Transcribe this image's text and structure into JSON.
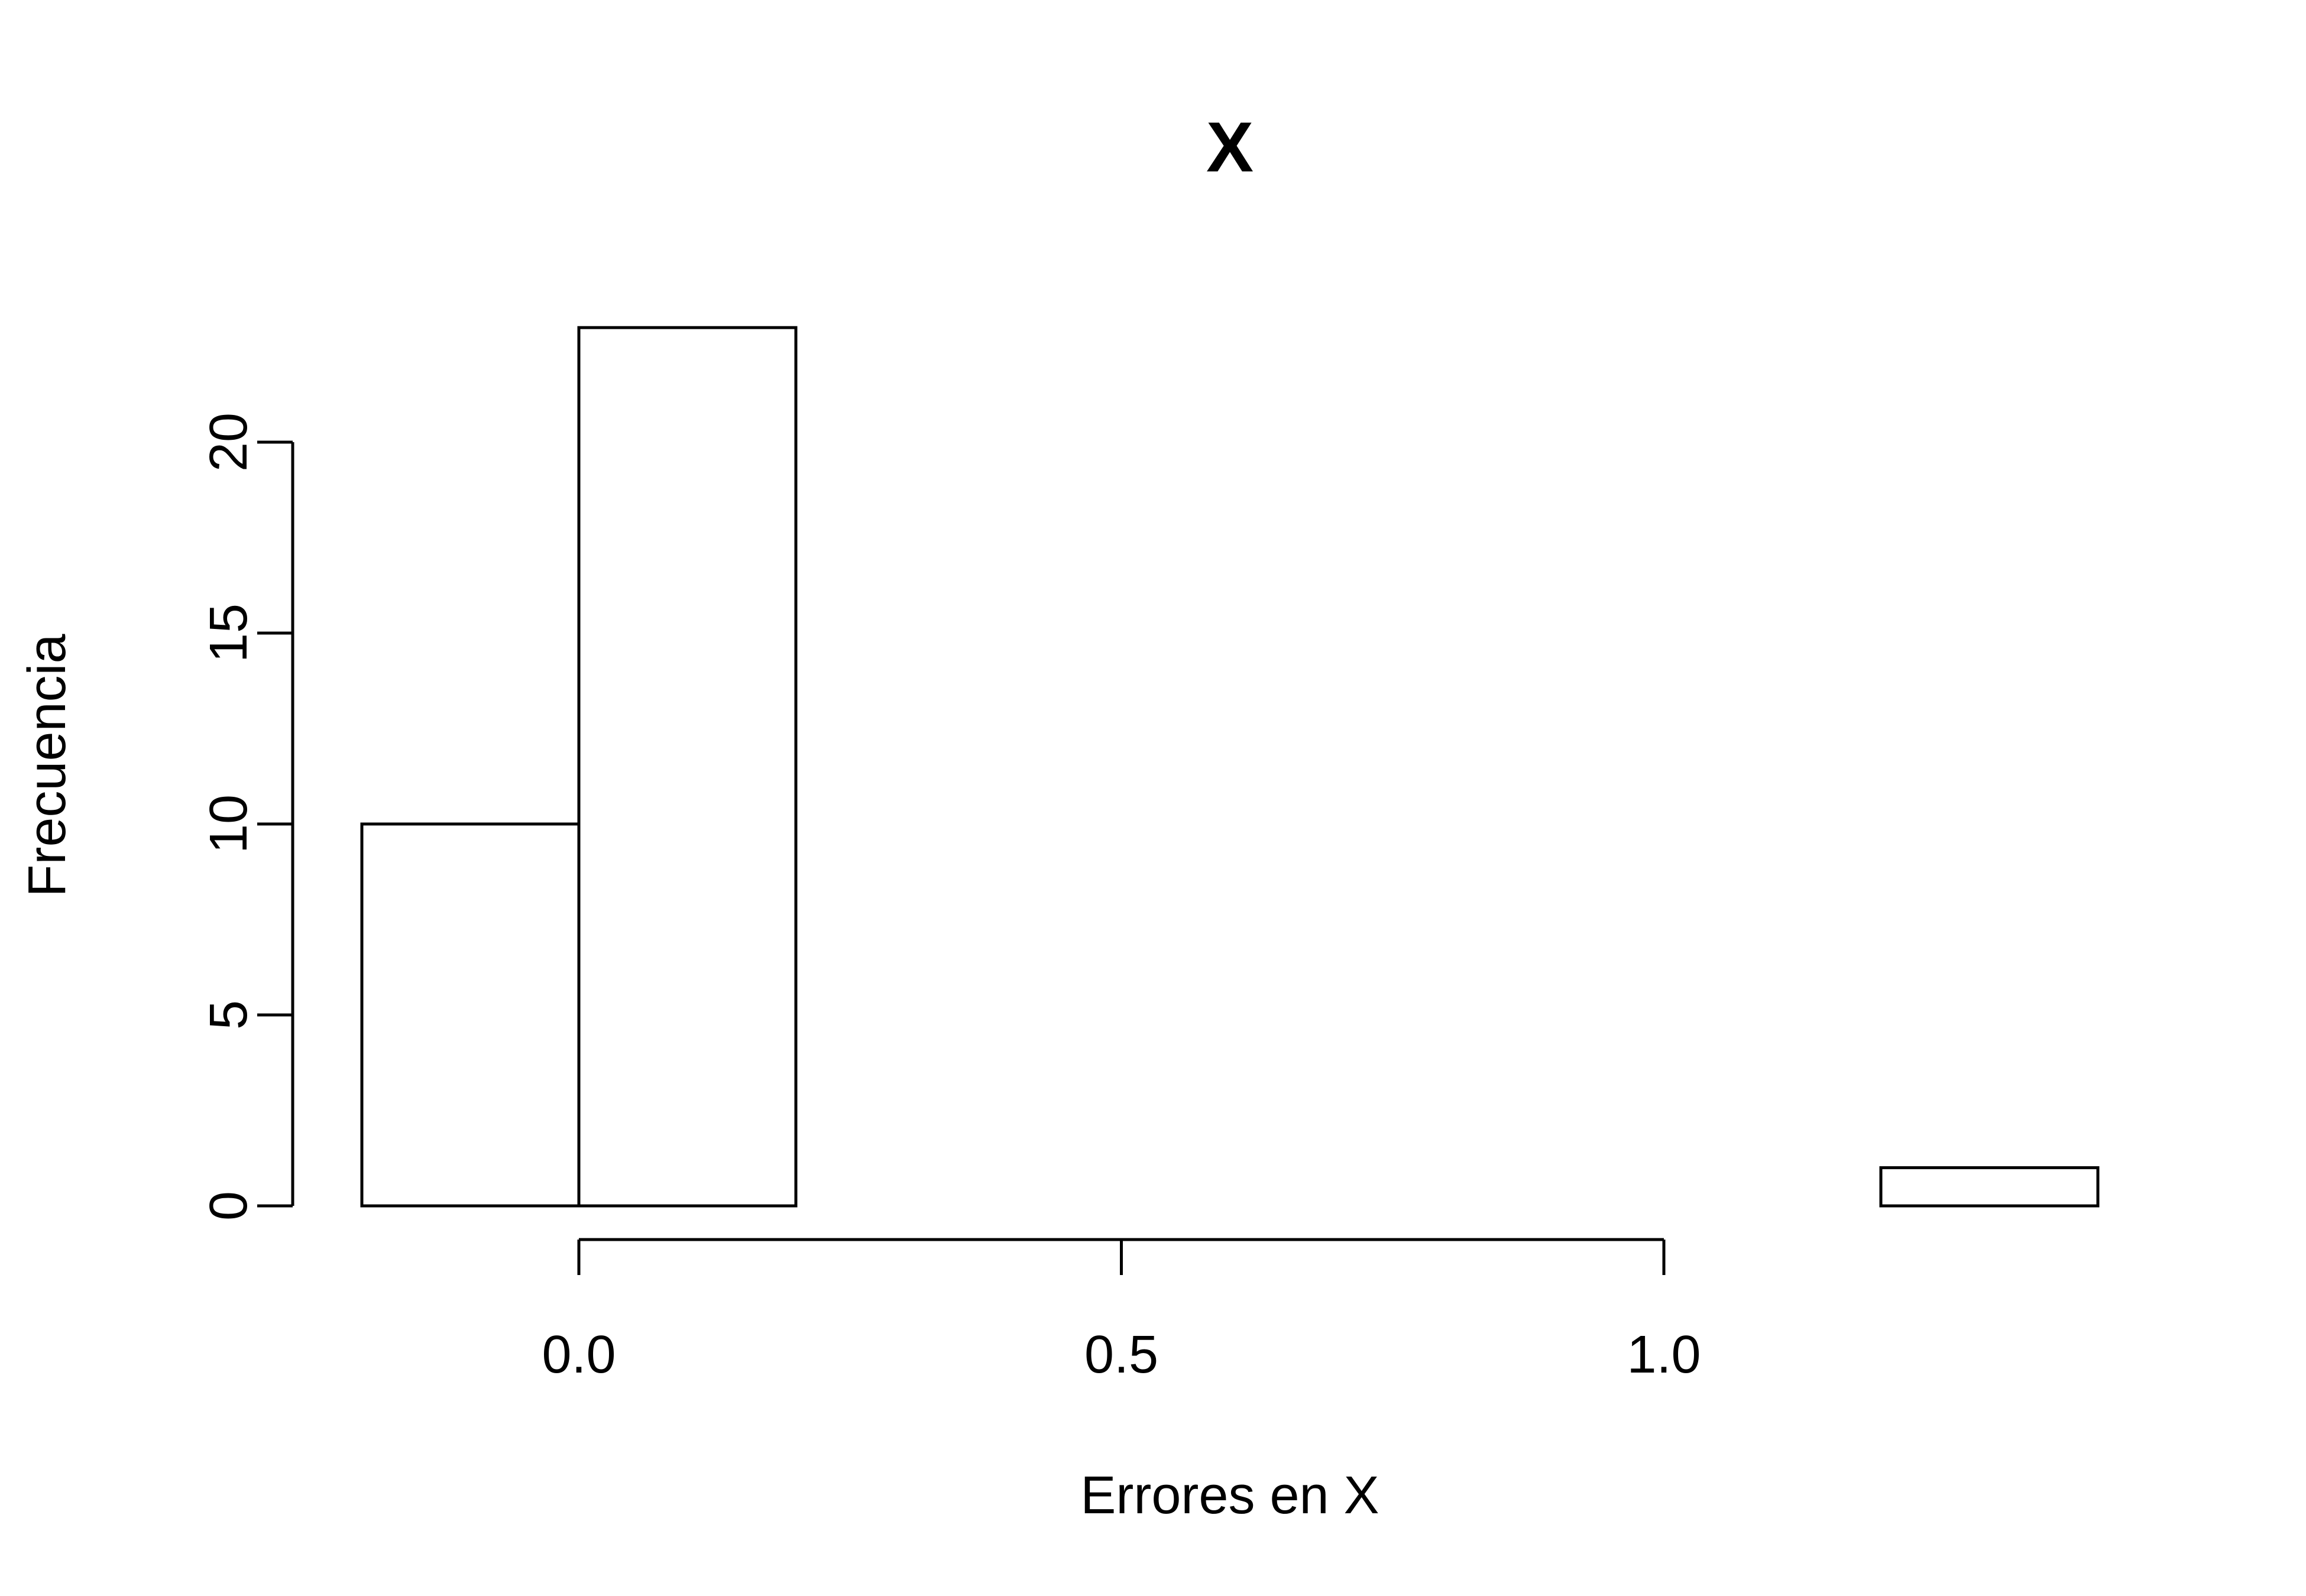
{
  "chart_data": {
    "type": "bar",
    "subtype": "histogram",
    "title": "X",
    "xlabel": "Errores en X",
    "ylabel": "Frecuencia",
    "bins": [
      {
        "start": -0.2,
        "end": 0.0,
        "count": 10
      },
      {
        "start": 0.0,
        "end": 0.2,
        "count": 23
      },
      {
        "start": 0.2,
        "end": 0.4,
        "count": 0
      },
      {
        "start": 0.4,
        "end": 0.6,
        "count": 0
      },
      {
        "start": 0.6,
        "end": 0.8,
        "count": 0
      },
      {
        "start": 0.8,
        "end": 1.0,
        "count": 0
      },
      {
        "start": 1.0,
        "end": 1.2,
        "count": 0
      },
      {
        "start": 1.2,
        "end": 1.4,
        "count": 1
      }
    ],
    "xlim": [
      -0.2,
      1.4
    ],
    "ylim": [
      0,
      23
    ],
    "x_ticks": [
      0.0,
      0.5,
      1.0
    ],
    "x_tick_labels": [
      "0.0",
      "0.5",
      "1.0"
    ],
    "y_ticks": [
      0,
      5,
      10,
      15,
      20
    ],
    "y_tick_labels": [
      "0",
      "5",
      "10",
      "15",
      "20"
    ],
    "bar_fill": "#ffffff",
    "bar_stroke": "#000000",
    "grid": false,
    "legend": "none"
  }
}
